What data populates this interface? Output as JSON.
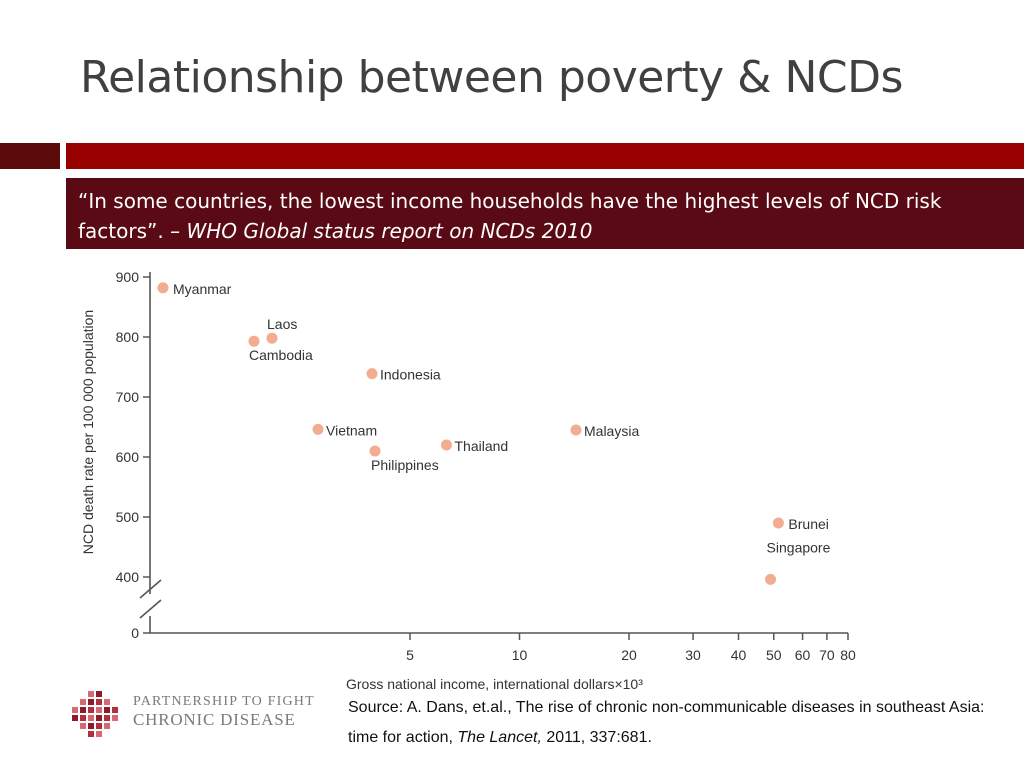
{
  "slide": {
    "title": "Relationship between poverty & NCDs",
    "quote_text": "“In some countries, the lowest income households have the highest levels of NCD risk factors”.",
    "quote_citation": "– WHO Global status report on NCDs 2010",
    "source_prefix": "Source: A. Dans, et.al., The rise of chronic non-communicable diseases in  southeast Asia: time for action,",
    "source_publication": "The Lancet,",
    "source_suffix": " 2011, 337:681."
  },
  "logo": {
    "line1": "PARTNERSHIP TO FIGHT",
    "line2": "CHRONIC DISEASE"
  },
  "colors": {
    "accent_dark": "#5c0b0b",
    "accent_red": "#990000",
    "quote_background": "#5a0a14",
    "point_fill": "#f2ad90"
  },
  "chart_data": {
    "type": "scatter",
    "title": "",
    "xlabel": "Gross national income, international dollars×10³",
    "ylabel": "NCD death rate per 100 000 population",
    "x_scale": "log",
    "xlim": [
      1.3,
      80
    ],
    "x_ticks": [
      5,
      10,
      20,
      30,
      40,
      50,
      60,
      70,
      80
    ],
    "y_axis_break": true,
    "y_ticks": [
      0,
      400,
      500,
      600,
      700,
      800,
      900
    ],
    "grid": false,
    "points": [
      {
        "name": "Myanmar",
        "x": 1.35,
        "y": 882
      },
      {
        "name": "Laos",
        "x": 2.3,
        "y": 798
      },
      {
        "name": "Cambodia",
        "x": 2.05,
        "y": 793
      },
      {
        "name": "Indonesia",
        "x": 4.0,
        "y": 739
      },
      {
        "name": "Vietnam",
        "x": 2.85,
        "y": 646
      },
      {
        "name": "Philippines",
        "x": 4.05,
        "y": 610
      },
      {
        "name": "Thailand",
        "x": 6.3,
        "y": 620
      },
      {
        "name": "Malaysia",
        "x": 14.3,
        "y": 645
      },
      {
        "name": "Brunei",
        "x": 51.5,
        "y": 490
      },
      {
        "name": "Singapore",
        "x": 49.0,
        "y": 396
      }
    ]
  }
}
